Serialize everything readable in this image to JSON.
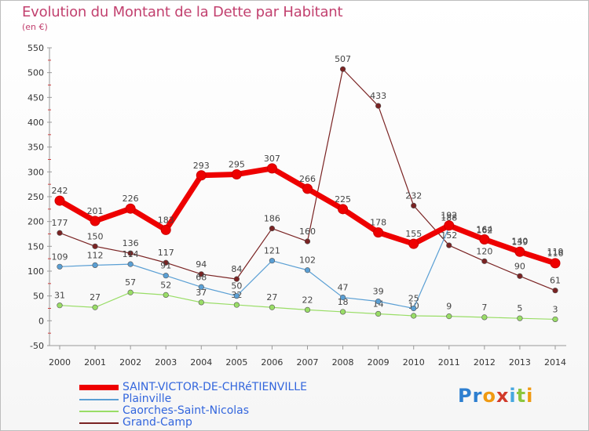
{
  "header": {
    "title": "Evolution du Montant de la Dette par Habitant",
    "subtitle": "(en €)"
  },
  "colors": {
    "title": "#c2416f",
    "axis_text": "#333333",
    "grid": "#dddddd"
  },
  "chart_data": {
    "type": "line",
    "x": [
      2000,
      2001,
      2002,
      2003,
      2004,
      2005,
      2006,
      2007,
      2008,
      2009,
      2010,
      2011,
      2012,
      2013,
      2014
    ],
    "ylim": [
      -50,
      550
    ],
    "yticks": [
      -50,
      0,
      50,
      100,
      150,
      200,
      250,
      300,
      350,
      400,
      450,
      500,
      550
    ],
    "grid": false,
    "legend_position": "bottom-left",
    "series": [
      {
        "name": "SAINT-VICTOR-DE-CHRéTIENVILLE",
        "color": "#ee0000",
        "legend_text_color": "#3366dd",
        "values": [
          242,
          201,
          226,
          183,
          293,
          295,
          307,
          266,
          225,
          178,
          155,
          192,
          164,
          139,
          116
        ]
      },
      {
        "name": "Plainville",
        "color": "#5a9fd4",
        "legend_text_color": "#3366dd",
        "values": [
          109,
          112,
          114,
          91,
          68,
          50,
          121,
          102,
          47,
          39,
          25,
          188,
          162,
          140,
          119
        ]
      },
      {
        "name": "Caorches-Saint-Nicolas",
        "color": "#99dd66",
        "legend_text_color": "#3366dd",
        "values": [
          31,
          27,
          57,
          52,
          37,
          32,
          27,
          22,
          18,
          14,
          10,
          9,
          7,
          5,
          3
        ]
      },
      {
        "name": "Grand-Camp",
        "color": "#7a2323",
        "legend_text_color": "#3366dd",
        "values": [
          177,
          150,
          136,
          117,
          94,
          84,
          186,
          160,
          507,
          433,
          232,
          152,
          120,
          90,
          61
        ]
      }
    ]
  },
  "logo": {
    "letters": [
      "P",
      "r",
      "o",
      "x",
      "i",
      "t",
      "i"
    ],
    "colors": [
      "#2e7fd0",
      "#2e7fd0",
      "#f09a12",
      "#d13a2a",
      "#47a8e0",
      "#8cc63f",
      "#f09a12"
    ]
  }
}
